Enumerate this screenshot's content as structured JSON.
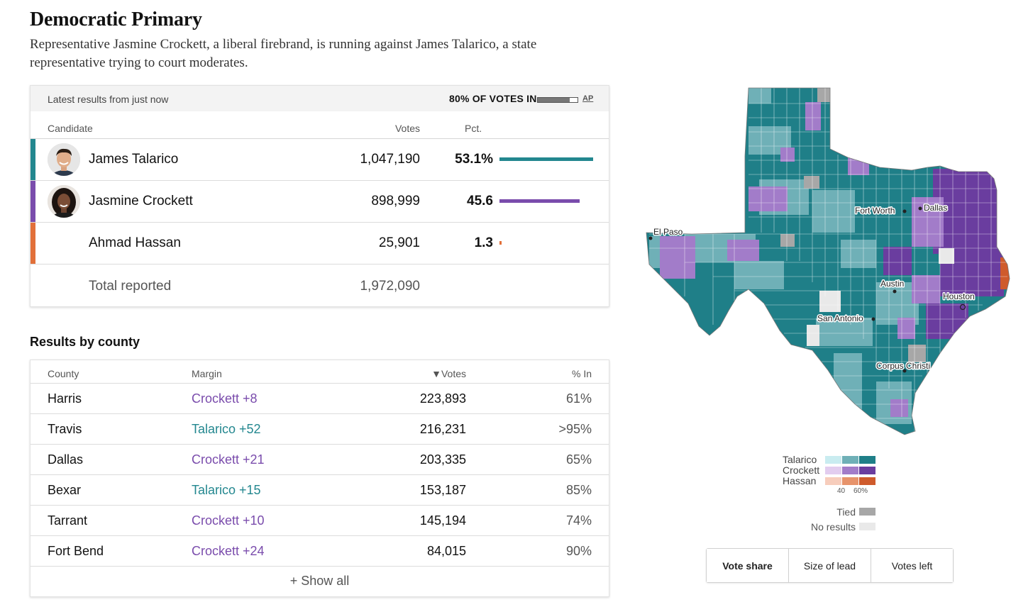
{
  "header": {
    "title": "Democratic Primary",
    "subtitle": "Representative Jasmine Crockett, a liberal firebrand, is running against James Talarico, a state representative trying to court moderates."
  },
  "results": {
    "latest_text": "Latest results from just now",
    "votes_in_label": "80% OF VOTES IN",
    "votes_in_fraction": 0.8,
    "source_link": "AP",
    "columns": {
      "candidate": "Candidate",
      "votes": "Votes",
      "pct": "Pct."
    },
    "candidates": [
      {
        "name": "James Talarico",
        "votes": "1,047,190",
        "pct": "53.1%",
        "pct_value": 53.1,
        "color": "#23878f"
      },
      {
        "name": "Jasmine Crockett",
        "votes": "898,999",
        "pct": "45.6",
        "pct_value": 45.6,
        "color": "#7a4cac"
      },
      {
        "name": "Ahmad Hassan",
        "votes": "25,901",
        "pct": "1.3",
        "pct_value": 1.3,
        "color": "#e2703a"
      }
    ],
    "total_label": "Total reported",
    "total_votes": "1,972,090"
  },
  "county": {
    "heading": "Results by county",
    "columns": {
      "county": "County",
      "margin": "Margin",
      "votes": "▼Votes",
      "pct_in": "% In"
    },
    "rows": [
      {
        "county": "Harris",
        "margin": "Crockett +8",
        "leader": "crockett",
        "votes": "223,893",
        "pct_in": "61%"
      },
      {
        "county": "Travis",
        "margin": "Talarico +52",
        "leader": "talarico",
        "votes": "216,231",
        "pct_in": ">95%"
      },
      {
        "county": "Dallas",
        "margin": "Crockett +21",
        "leader": "crockett",
        "votes": "203,335",
        "pct_in": "65%"
      },
      {
        "county": "Bexar",
        "margin": "Talarico +15",
        "leader": "talarico",
        "votes": "153,187",
        "pct_in": "85%"
      },
      {
        "county": "Tarrant",
        "margin": "Crockett +10",
        "leader": "crockett",
        "votes": "145,194",
        "pct_in": "74%"
      },
      {
        "county": "Fort Bend",
        "margin": "Crockett +24",
        "leader": "crockett",
        "votes": "84,015",
        "pct_in": "90%"
      }
    ],
    "show_all_label": "+ Show all"
  },
  "map": {
    "cities": [
      "El Paso",
      "Fort Worth",
      "Dallas",
      "Austin",
      "Houston",
      "San Antonio",
      "Corpus Christi"
    ]
  },
  "legend": {
    "candidates": [
      {
        "name": "Talarico",
        "shades": [
          "#c9ecf0",
          "#6fb0b7",
          "#1f7f88"
        ]
      },
      {
        "name": "Crockett",
        "shades": [
          "#e2cdef",
          "#a27cc9",
          "#6a3d9f"
        ]
      },
      {
        "name": "Hassan",
        "shades": [
          "#f7cdbc",
          "#e7936b",
          "#cf5b2c"
        ]
      }
    ],
    "ticks": [
      "40",
      "60%"
    ],
    "tied_label": "Tied",
    "tied_color": "#a7a7a7",
    "no_results_label": "No results",
    "no_results_color": "#e9e9e9"
  },
  "toggle": {
    "options": [
      "Vote share",
      "Size of lead",
      "Votes left"
    ],
    "active": "Vote share"
  },
  "colors": {
    "talarico": "#23878f",
    "crockett": "#7a4cac",
    "hassan": "#e2703a"
  }
}
